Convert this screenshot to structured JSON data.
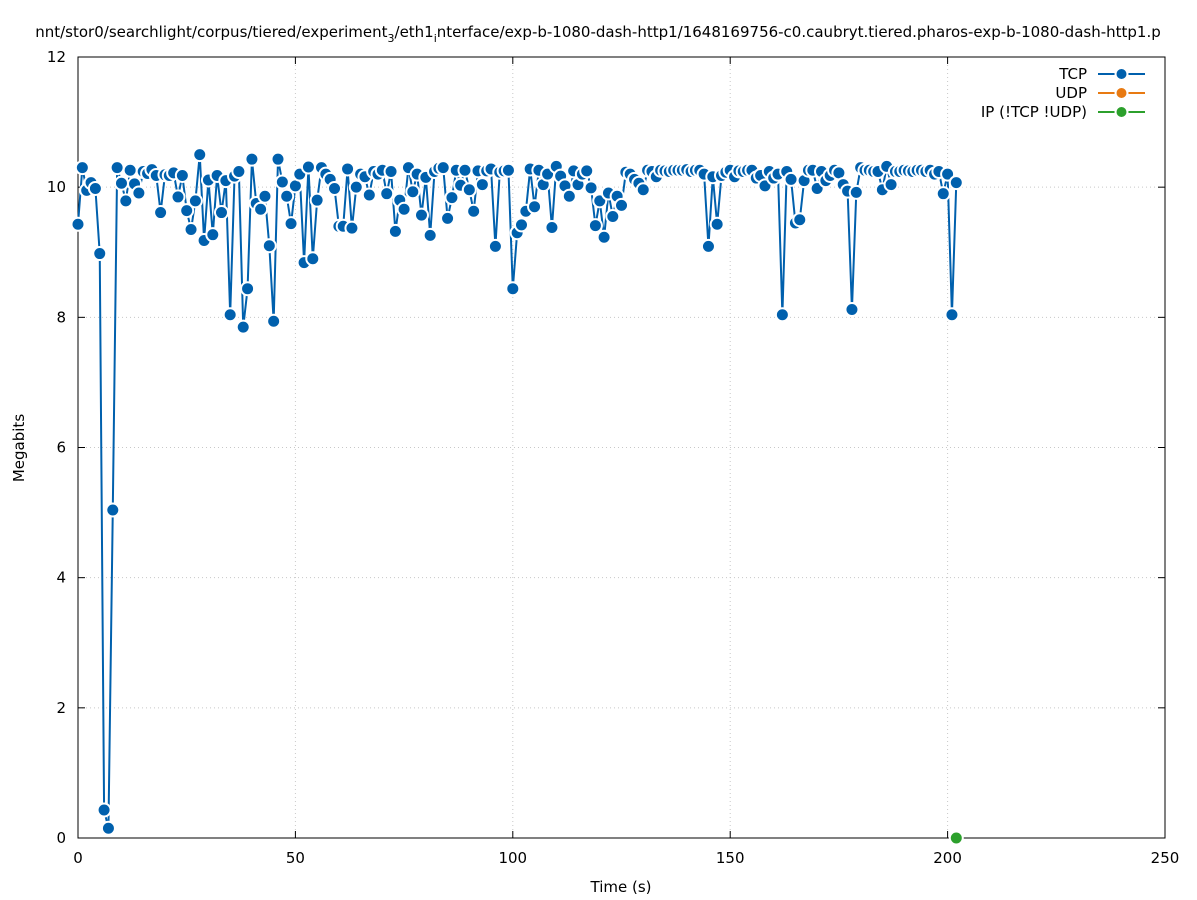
{
  "chart_data": {
    "type": "line",
    "title": "nnt/stor0/searchlight/corpus/tiered/experiment",
    "title_subscript": "3",
    "title_rest": "/eth1",
    "title_subscript2": "i",
    "title_rest2": "nterface/exp-b-1080-dash-http1/1648169756-c0.caubryt.tiered.pharos-exp-b-1080-dash-http1.p",
    "xlabel": "Time (s)",
    "ylabel": "Megabits",
    "xlim": [
      0,
      250
    ],
    "ylim": [
      0,
      12
    ],
    "xticks": [
      "0",
      "50",
      "100",
      "150",
      "200",
      "250"
    ],
    "yticks": [
      "0",
      "2",
      "4",
      "6",
      "8",
      "10",
      "12"
    ],
    "grid": true,
    "legend_position": "top-right",
    "series": [
      {
        "name": "TCP",
        "color": "#0060ad",
        "x": [
          0,
          1,
          2,
          3,
          4,
          5,
          6,
          7,
          8,
          9,
          10,
          11,
          12,
          13,
          14,
          15,
          16,
          17,
          18,
          19,
          20,
          21,
          22,
          23,
          24,
          25,
          26,
          27,
          28,
          29,
          30,
          31,
          32,
          33,
          34,
          35,
          36,
          37,
          38,
          39,
          40,
          41,
          42,
          43,
          44,
          45,
          46,
          47,
          48,
          49,
          50,
          51,
          52,
          53,
          54,
          55,
          56,
          57,
          58,
          59,
          60,
          61,
          62,
          63,
          64,
          65,
          66,
          67,
          68,
          69,
          70,
          71,
          72,
          73,
          74,
          75,
          76,
          77,
          78,
          79,
          80,
          81,
          82,
          83,
          84,
          85,
          86,
          87,
          88,
          89,
          90,
          91,
          92,
          93,
          94,
          95,
          96,
          97,
          98,
          99,
          100,
          101,
          102,
          103,
          104,
          105,
          106,
          107,
          108,
          109,
          110,
          111,
          112,
          113,
          114,
          115,
          116,
          117,
          118,
          119,
          120,
          121,
          122,
          123,
          124,
          125,
          126,
          127,
          128,
          129,
          130,
          131,
          132,
          133,
          134,
          135,
          136,
          137,
          138,
          139,
          140,
          141,
          142,
          143,
          144,
          145,
          146,
          147,
          148,
          149,
          150,
          151,
          152,
          153,
          154,
          155,
          156,
          157,
          158,
          159,
          160,
          161,
          162,
          163,
          164,
          165,
          166,
          167,
          168,
          169,
          170,
          171,
          172,
          173,
          174,
          175,
          176,
          177,
          178,
          179,
          180,
          181,
          182,
          183,
          184,
          185,
          186,
          187,
          188,
          189,
          190,
          191,
          192,
          193,
          194,
          195,
          196,
          197,
          198,
          199,
          200,
          201,
          202
        ],
        "values": [
          9.43,
          10.3,
          9.95,
          10.07,
          9.98,
          8.98,
          0.43,
          0.15,
          5.04,
          10.3,
          10.06,
          9.79,
          10.26,
          10.05,
          9.91,
          10.24,
          10.21,
          10.27,
          10.18,
          9.61,
          10.19,
          10.18,
          10.22,
          9.85,
          10.18,
          9.64,
          9.35,
          9.79,
          10.5,
          9.18,
          10.11,
          9.27,
          10.18,
          9.61,
          10.1,
          8.04,
          10.17,
          10.24,
          7.85,
          8.44,
          10.43,
          9.75,
          9.66,
          9.86,
          9.1,
          7.94,
          10.43,
          10.08,
          9.86,
          9.44,
          10.02,
          10.2,
          8.84,
          10.31,
          8.9,
          9.8,
          10.3,
          10.2,
          10.12,
          9.98,
          9.4,
          9.4,
          10.28,
          9.37,
          10.0,
          10.2,
          10.16,
          9.88,
          10.24,
          10.2,
          10.26,
          9.9,
          10.24,
          9.32,
          9.8,
          9.66,
          10.3,
          9.93,
          10.2,
          9.57,
          10.15,
          9.26,
          10.24,
          10.29,
          10.3,
          9.52,
          9.84,
          10.26,
          10.03,
          10.26,
          9.96,
          9.63,
          10.25,
          10.04,
          10.25,
          10.28,
          9.09,
          10.23,
          10.25,
          10.26,
          8.44,
          9.3,
          9.42,
          9.63,
          10.28,
          9.7,
          10.26,
          10.04,
          10.2,
          9.38,
          10.32,
          10.17,
          10.02,
          9.86,
          10.25,
          10.04,
          10.2,
          10.25,
          9.99,
          9.41,
          9.79,
          9.23,
          9.91,
          9.55,
          9.86,
          9.72,
          10.23,
          10.2,
          10.12,
          10.06,
          9.96,
          10.26,
          10.24,
          10.16,
          10.26,
          10.25,
          10.24,
          10.26,
          10.26,
          10.26,
          10.27,
          10.24,
          10.26,
          10.26,
          10.2,
          9.09,
          10.16,
          9.43,
          10.18,
          10.23,
          10.26,
          10.16,
          10.25,
          10.24,
          10.26,
          10.26,
          10.14,
          10.18,
          10.02,
          10.24,
          10.14,
          10.2,
          8.04,
          10.24,
          10.12,
          9.45,
          9.5,
          10.1,
          10.26,
          10.26,
          9.98,
          10.24,
          10.1,
          10.18,
          10.26,
          10.22,
          10.04,
          9.94,
          8.12,
          9.92,
          10.3,
          10.26,
          10.26,
          10.24,
          10.24,
          9.96,
          10.32,
          10.04,
          10.24,
          10.24,
          10.26,
          10.25,
          10.24,
          10.26,
          10.26,
          10.24,
          10.26,
          10.2,
          10.24,
          9.9,
          10.2,
          8.04,
          10.07
        ]
      },
      {
        "name": "UDP",
        "color": "#e87a12",
        "x": [],
        "values": []
      },
      {
        "name": "IP (!TCP  !UDP)",
        "color": "#2ca02c",
        "x": [
          202
        ],
        "values": [
          0.0
        ]
      }
    ]
  }
}
